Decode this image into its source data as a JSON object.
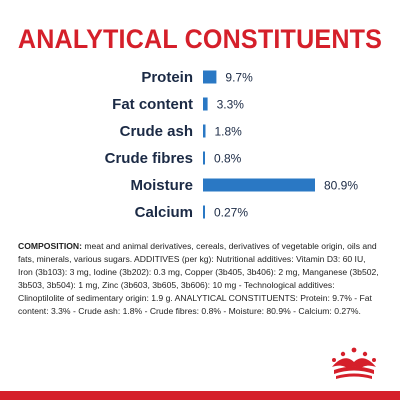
{
  "title": "ANALYTICAL CONSTITUENTS",
  "colors": {
    "title_red": "#d51f2a",
    "bar_blue": "#2a78c4",
    "text_navy": "#1b2a45",
    "logo_red": "#d51f2a"
  },
  "chart_data": {
    "type": "bar",
    "orientation": "horizontal",
    "categories": [
      "Protein",
      "Fat content",
      "Crude ash",
      "Crude fibres",
      "Moisture",
      "Calcium"
    ],
    "values": [
      9.7,
      3.3,
      1.8,
      0.8,
      80.9,
      0.27
    ],
    "value_labels": [
      "9.7%",
      "3.3%",
      "1.8%",
      "0.8%",
      "80.9%",
      "0.27%"
    ],
    "unit": "%",
    "xlim": [
      0,
      100
    ],
    "grid": false,
    "legend": "none"
  },
  "composition": {
    "label": "COMPOSITION:",
    "text": " meat and animal derivatives, cereals, derivatives of vegetable origin, oils and fats, minerals, various sugars. ADDITIVES (per kg): Nutritional additives: Vitamin D3: 60 IU, Iron (3b103): 3 mg, Iodine (3b202): 0.3 mg, Copper (3b405, 3b406): 2 mg, Manganese (3b502, 3b503, 3b504): 1 mg, Zinc (3b603, 3b605, 3b606): 10 mg - Technological additives: Clinoptilolite of sedimentary origin: 1.9 g. ANALYTICAL CONSTITUENTS: Protein: 9.7% - Fat content: 3.3% - Crude ash: 1.8% - Crude fibres: 0.8% - Moisture: 80.9% - Calcium: 0.27%."
  },
  "logo": {
    "icon": "royal-crown-icon"
  }
}
